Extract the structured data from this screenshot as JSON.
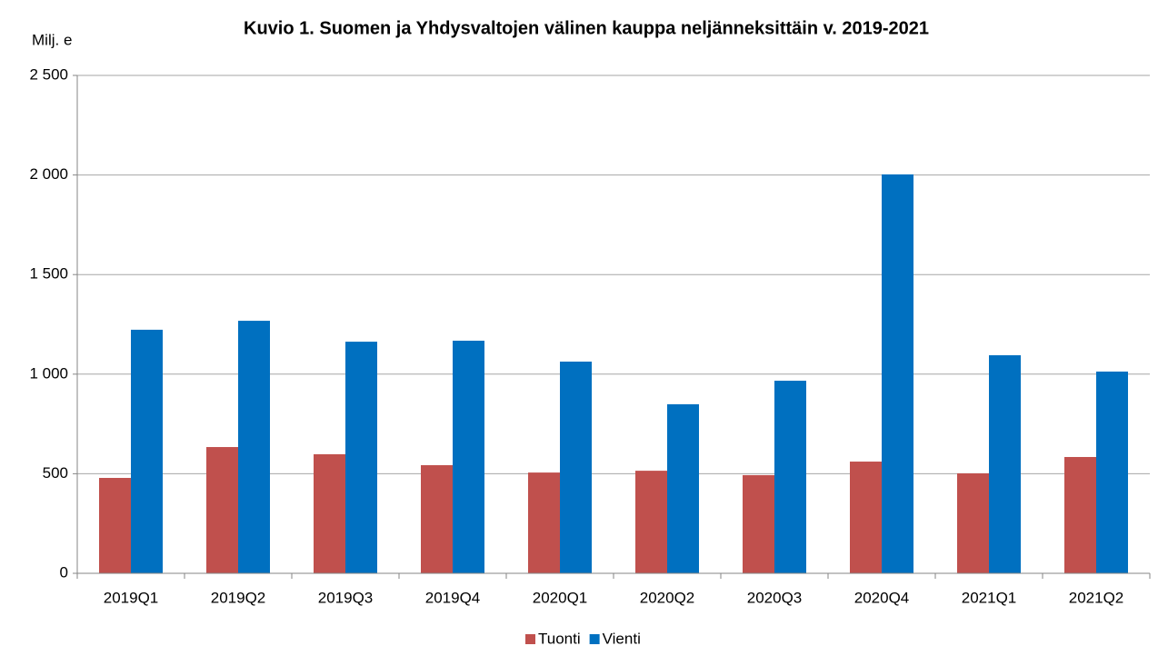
{
  "chart_data": {
    "type": "bar",
    "title": "Kuvio 1. Suomen ja Yhdysvaltojen välinen kauppa neljänneksittäin v. 2019-2021",
    "y_label": "Milj. e",
    "categories": [
      "2019Q1",
      "2019Q2",
      "2019Q3",
      "2019Q4",
      "2020Q1",
      "2020Q2",
      "2020Q3",
      "2020Q4",
      "2021Q1",
      "2021Q2"
    ],
    "series": [
      {
        "name": "Tuonti",
        "color": "#c0504d",
        "values": [
          479,
          634,
          598,
          543,
          506,
          515,
          493,
          561,
          502,
          584
        ]
      },
      {
        "name": "Vienti",
        "color": "#0070c0",
        "values": [
          1223,
          1268,
          1163,
          1168,
          1063,
          849,
          967,
          2003,
          1095,
          1013
        ]
      }
    ],
    "ylim": [
      0,
      2500
    ],
    "yticks": [
      0,
      500,
      {
        "value": 1000,
        "label": "1 000"
      },
      {
        "value": 1500,
        "label": "1 500"
      },
      {
        "value": 2000,
        "label": "2 000"
      },
      {
        "value": 2500,
        "label": "2 500"
      }
    ],
    "grid": true,
    "legend": "bottom"
  }
}
